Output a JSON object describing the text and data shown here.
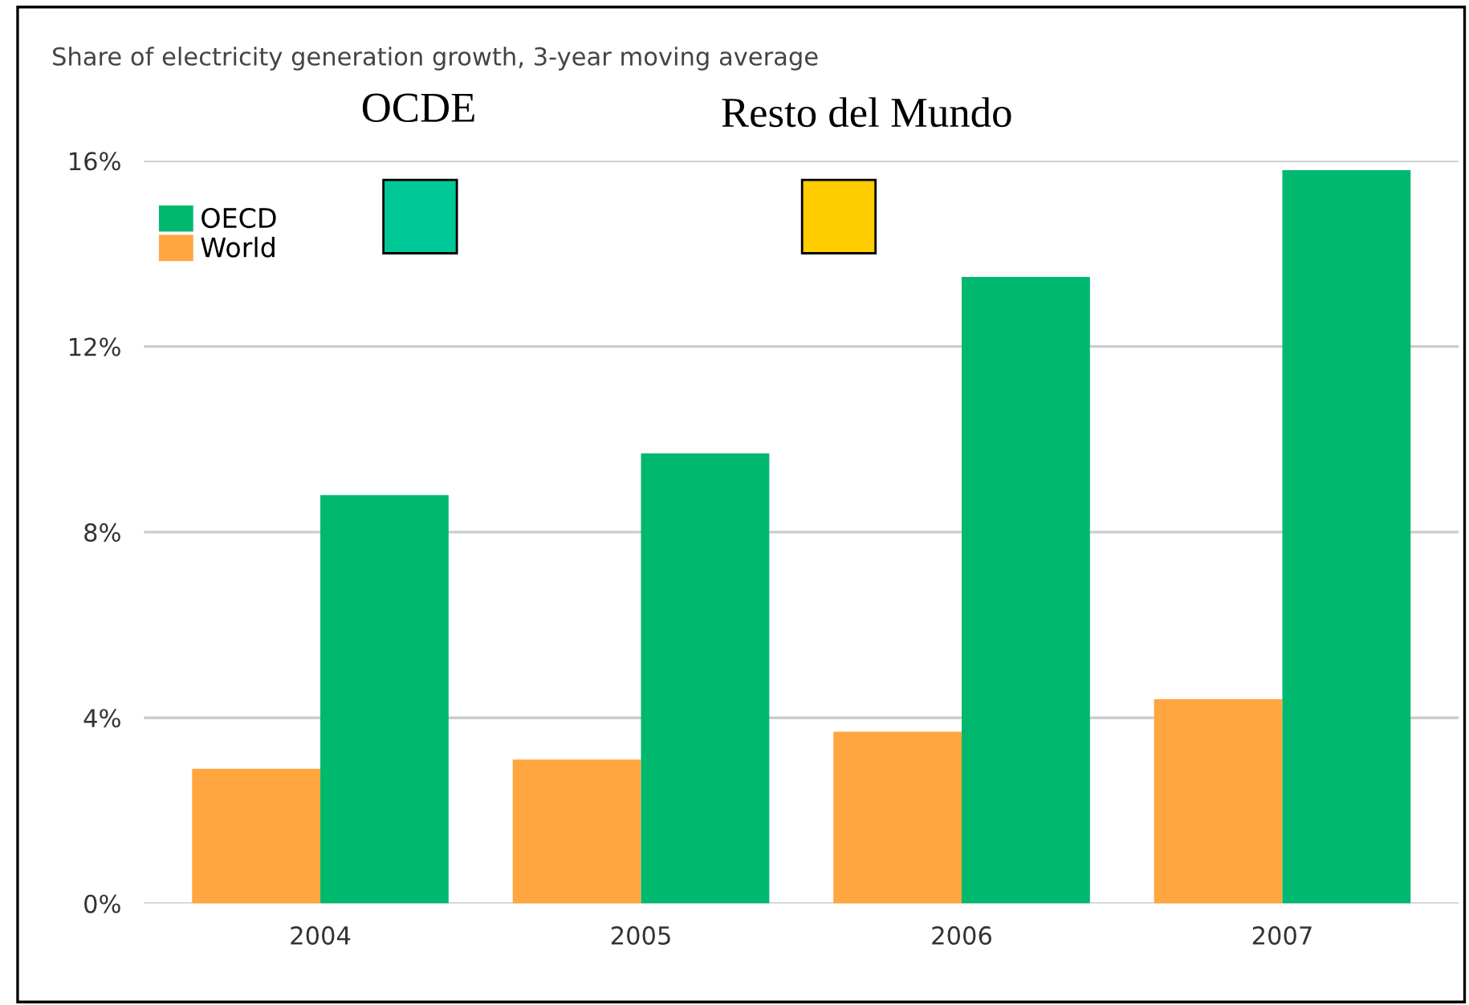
{
  "chart_data": {
    "type": "bar",
    "title": "Share of electricity generation growth, 3-year moving average",
    "categories": [
      "2004",
      "2005",
      "2006",
      "2007"
    ],
    "series": [
      {
        "name": "World",
        "color": "#ffa640",
        "values": [
          2.9,
          3.1,
          3.7,
          4.4
        ]
      },
      {
        "name": "OECD",
        "color": "#00b86e",
        "values": [
          8.8,
          9.7,
          13.5,
          15.8
        ]
      }
    ],
    "ylim": [
      0,
      16
    ],
    "yticks": [
      {
        "value": 0,
        "label": "0%"
      },
      {
        "value": 4,
        "label": "4%"
      },
      {
        "value": 8,
        "label": "8%"
      },
      {
        "value": 12,
        "label": "12%"
      },
      {
        "value": 16,
        "label": "16%"
      }
    ],
    "grid": "y",
    "legend": "top left",
    "annotations": [
      "OCDE",
      "Resto del Mundo"
    ]
  }
}
